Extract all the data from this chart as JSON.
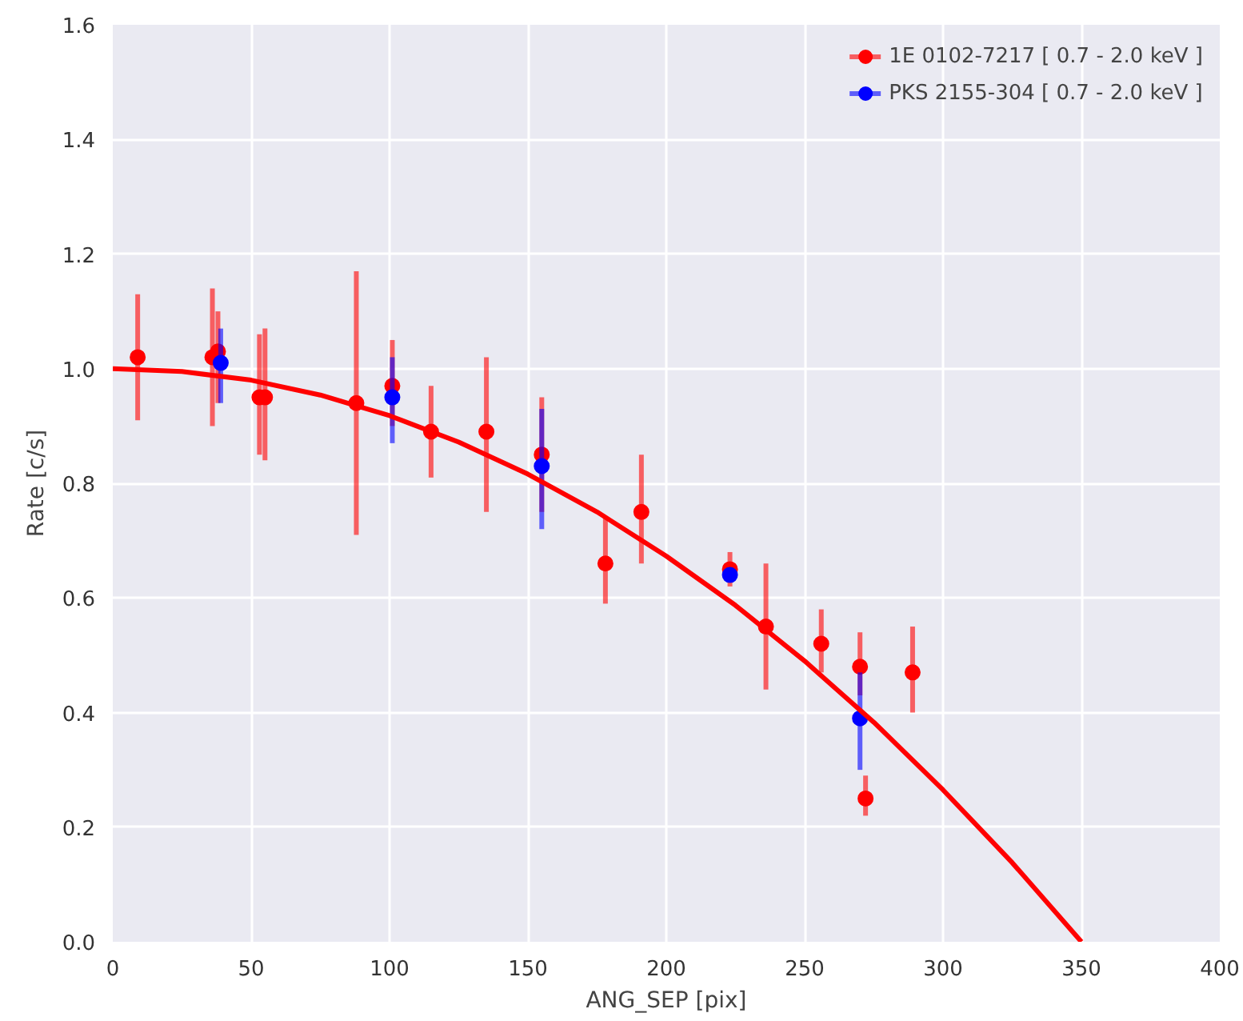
{
  "chart_data": {
    "type": "scatter",
    "xlabel": "ANG_SEP [pix]",
    "ylabel": "Rate [c/s]",
    "xlim": [
      0,
      400
    ],
    "xticks": [
      0,
      50,
      100,
      150,
      200,
      250,
      300,
      350,
      400
    ],
    "ylim": [
      0,
      1.6
    ],
    "yticks": [
      {
        "value": 0,
        "label": "0.0"
      },
      {
        "value": 0.2,
        "label": "0.2"
      },
      {
        "value": 0.4,
        "label": "0.4"
      },
      {
        "value": 0.6,
        "label": "0.6"
      },
      {
        "value": 0.8,
        "label": "0.8"
      },
      {
        "value": 1.0,
        "label": "1.0"
      },
      {
        "value": 1.2,
        "label": "1.2"
      },
      {
        "value": 1.4,
        "label": "1.4"
      },
      {
        "value": 1.6,
        "label": "1.6"
      }
    ],
    "grid": true,
    "legend": "top right",
    "marker": "circle",
    "series": [
      {
        "name": "1E 0102-7217 [ 0.7 - 2.0 keV ]",
        "color": "#ff0000",
        "x": [
          9,
          36,
          38,
          53,
          55,
          88,
          101,
          115,
          135,
          155,
          178,
          191,
          223,
          236,
          256,
          270,
          272,
          289
        ],
        "values": [
          1.02,
          1.02,
          1.03,
          0.95,
          0.95,
          0.94,
          0.97,
          0.89,
          0.89,
          0.85,
          0.66,
          0.75,
          0.65,
          0.55,
          0.52,
          0.48,
          0.25,
          0.47
        ],
        "errors": [
          [
            0.91,
            1.13
          ],
          [
            0.9,
            1.14
          ],
          [
            0.94,
            1.1
          ],
          [
            0.85,
            1.06
          ],
          [
            0.84,
            1.07
          ],
          [
            0.71,
            1.17
          ],
          [
            0.9,
            1.05
          ],
          [
            0.81,
            0.97
          ],
          [
            0.75,
            1.02
          ],
          [
            0.75,
            0.95
          ],
          [
            0.59,
            0.74
          ],
          [
            0.66,
            0.85
          ],
          [
            0.62,
            0.68
          ],
          [
            0.44,
            0.66
          ],
          [
            0.47,
            0.58
          ],
          [
            0.43,
            0.54
          ],
          [
            0.22,
            0.29
          ],
          [
            0.4,
            0.55
          ]
        ]
      },
      {
        "name": "PKS 2155-304 [ 0.7 - 2.0 keV ]",
        "color": "#0000ff",
        "x": [
          39,
          101,
          155,
          223,
          270
        ],
        "values": [
          1.01,
          0.95,
          0.83,
          0.64,
          0.39
        ],
        "errors": [
          [
            0.94,
            1.07
          ],
          [
            0.87,
            1.02
          ],
          [
            0.72,
            0.93
          ],
          null,
          [
            0.3,
            0.47
          ]
        ]
      },
      {
        "type": "line",
        "marker": "none",
        "color": "#ff0000",
        "x": [
          0,
          25,
          50,
          75,
          100,
          125,
          150,
          175,
          200,
          225,
          250,
          275,
          300,
          325,
          350
        ],
        "values": [
          1.0,
          0.995,
          0.98,
          0.954,
          0.918,
          0.872,
          0.816,
          0.75,
          0.673,
          0.587,
          0.49,
          0.383,
          0.265,
          0.138,
          0.0
        ]
      }
    ]
  }
}
